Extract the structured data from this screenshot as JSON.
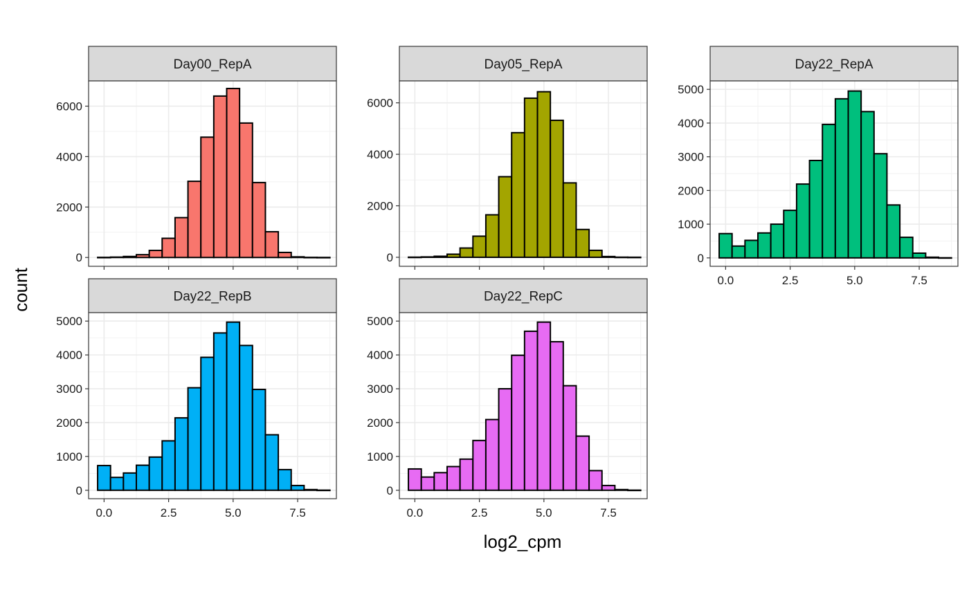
{
  "chart_data": {
    "type": "bar",
    "chart_kind": "histogram",
    "layout": "faceted, 3 columns x 2 rows",
    "xlabel": "log2_cpm",
    "ylabel": "count",
    "grid": true,
    "legend": "none",
    "bin_width": 0.5,
    "bins": [
      -0.25,
      0.25,
      0.75,
      1.25,
      1.75,
      2.25,
      2.75,
      3.25,
      3.75,
      4.25,
      4.75,
      5.25,
      5.75,
      6.25,
      6.75,
      7.25,
      7.75,
      8.25,
      8.75
    ],
    "bin_centers": [
      0,
      0.5,
      1,
      1.5,
      2,
      2.5,
      3,
      3.5,
      4,
      4.5,
      5,
      5.5,
      6,
      6.5,
      7,
      7.5,
      8,
      8.5
    ],
    "xlim": [
      -0.6,
      9.0
    ],
    "x_ticks": [
      "0.0",
      "2.5",
      "5.0",
      "7.5"
    ],
    "x_tick_values": [
      0,
      2.5,
      5,
      7.5
    ],
    "panels": [
      {
        "label": "Day00_RepA",
        "color": "#F8766D",
        "ylim": [
          -350,
          7000
        ],
        "y_ticks": [
          0,
          2000,
          4000,
          6000
        ],
        "y_tick_labels": [
          "0",
          "2000",
          "4000",
          "6000"
        ],
        "values": [
          5,
          15,
          40,
          110,
          280,
          760,
          1580,
          3020,
          4770,
          6400,
          6700,
          5330,
          2970,
          1020,
          200,
          25,
          5,
          2
        ]
      },
      {
        "label": "Day05_RepA",
        "color": "#A3A500",
        "ylim": [
          -350,
          6850
        ],
        "y_ticks": [
          0,
          2000,
          4000,
          6000
        ],
        "y_tick_labels": [
          "0",
          "2000",
          "4000",
          "6000"
        ],
        "values": [
          5,
          15,
          40,
          120,
          360,
          820,
          1650,
          3130,
          4840,
          6180,
          6430,
          5320,
          2890,
          1080,
          270,
          30,
          5,
          2
        ]
      },
      {
        "label": "Day22_RepA",
        "color": "#00BF7D",
        "ylim": [
          -250,
          5250
        ],
        "y_ticks": [
          0,
          1000,
          2000,
          3000,
          4000,
          5000
        ],
        "y_tick_labels": [
          "0",
          "1000",
          "2000",
          "3000",
          "4000",
          "5000"
        ],
        "values": [
          720,
          350,
          520,
          740,
          1000,
          1410,
          2190,
          2890,
          3960,
          4720,
          4950,
          4340,
          3090,
          1570,
          610,
          140,
          20,
          3
        ]
      },
      {
        "label": "Day22_RepB",
        "color": "#00B0F6",
        "ylim": [
          -250,
          5250
        ],
        "y_ticks": [
          0,
          1000,
          2000,
          3000,
          4000,
          5000
        ],
        "y_tick_labels": [
          "0",
          "1000",
          "2000",
          "3000",
          "4000",
          "5000"
        ],
        "values": [
          730,
          380,
          510,
          740,
          980,
          1460,
          2140,
          3030,
          3930,
          4650,
          4970,
          4280,
          2980,
          1640,
          610,
          140,
          20,
          3
        ]
      },
      {
        "label": "Day22_RepC",
        "color": "#E76BF3",
        "ylim": [
          -250,
          5250
        ],
        "y_ticks": [
          0,
          1000,
          2000,
          3000,
          4000,
          5000
        ],
        "y_tick_labels": [
          "0",
          "1000",
          "2000",
          "3000",
          "4000",
          "5000"
        ],
        "values": [
          630,
          390,
          520,
          700,
          920,
          1470,
          2090,
          3000,
          3990,
          4700,
          4970,
          4390,
          3090,
          1600,
          580,
          140,
          20,
          3
        ]
      }
    ]
  }
}
